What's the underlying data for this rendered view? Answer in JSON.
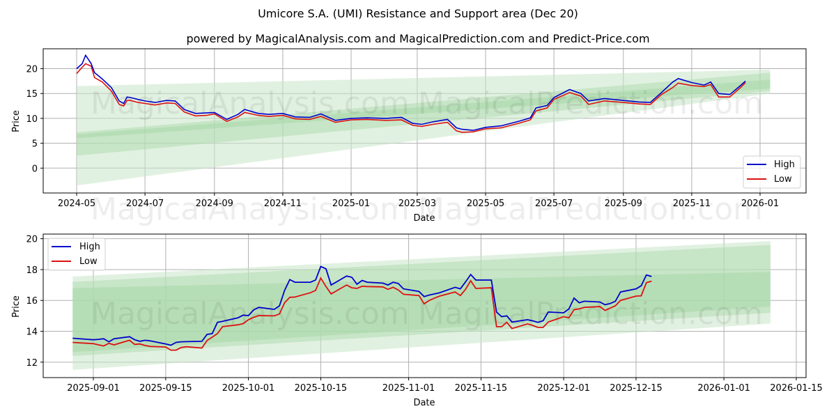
{
  "header": {
    "title": "Umicore S.A. (UMI) Resistance and Support area (Dec 20)",
    "subtitle": "powered by MagicalAnalysis.com and MagicalPrediction.com and Predict-Price.com"
  },
  "colors": {
    "high": "#0000cc",
    "low": "#dd1111",
    "band_light": "#c8e6c8",
    "band_mid": "#a8d8a8",
    "grid": "#b0b0b0"
  },
  "watermarks": {
    "a": "MagicalAnalysis.com",
    "b": "MagicalPrediction.com"
  },
  "chart_data": [
    {
      "type": "line",
      "title": "Full history",
      "xlabel": "Date",
      "ylabel": "Price",
      "ylim": [
        -5,
        24
      ],
      "grid": true,
      "legend_position": "lower right",
      "x_ticks": [
        "2024-05",
        "2024-07",
        "2024-09",
        "2024-11",
        "2025-01",
        "2025-03",
        "2025-05",
        "2025-07",
        "2025-09",
        "2025-11",
        "2026-01"
      ],
      "y_ticks": [
        0,
        5,
        10,
        15,
        20
      ],
      "legend": [
        "High",
        "Low"
      ],
      "x": [
        "2024-05-01",
        "2024-05-06",
        "2024-05-09",
        "2024-05-14",
        "2024-05-17",
        "2024-05-24",
        "2024-06-01",
        "2024-06-08",
        "2024-06-12",
        "2024-06-15",
        "2024-06-18",
        "2024-06-25",
        "2024-07-01",
        "2024-07-10",
        "2024-07-20",
        "2024-07-28",
        "2024-08-05",
        "2024-08-15",
        "2024-08-25",
        "2024-09-01",
        "2024-09-12",
        "2024-09-22",
        "2024-09-28",
        "2024-10-10",
        "2024-10-20",
        "2024-11-01",
        "2024-11-12",
        "2024-11-25",
        "2024-12-05",
        "2024-12-18",
        "2025-01-01",
        "2025-01-15",
        "2025-02-01",
        "2025-02-15",
        "2025-02-25",
        "2025-03-05",
        "2025-03-15",
        "2025-03-28",
        "2025-04-05",
        "2025-04-10",
        "2025-04-20",
        "2025-05-01",
        "2025-05-15",
        "2025-06-01",
        "2025-06-10",
        "2025-06-15",
        "2025-06-25",
        "2025-07-01",
        "2025-07-15",
        "2025-07-25",
        "2025-08-01",
        "2025-08-15",
        "2025-09-01",
        "2025-09-15",
        "2025-09-25",
        "2025-10-05",
        "2025-10-15",
        "2025-10-20",
        "2025-11-01",
        "2025-11-12",
        "2025-11-18",
        "2025-11-25",
        "2025-12-05",
        "2025-12-15",
        "2025-12-19"
      ],
      "series": [
        {
          "name": "High",
          "values": [
            20.0,
            21.0,
            22.7,
            21.0,
            19.2,
            17.9,
            16.2,
            13.5,
            13.0,
            14.3,
            14.2,
            13.8,
            13.5,
            13.2,
            13.6,
            13.5,
            11.8,
            11.0,
            11.1,
            11.2,
            9.8,
            10.8,
            11.8,
            11.0,
            10.8,
            11.0,
            10.3,
            10.2,
            10.9,
            9.6,
            10.0,
            10.1,
            10.0,
            10.2,
            9.0,
            8.8,
            9.3,
            9.8,
            8.1,
            7.8,
            7.6,
            8.2,
            8.5,
            9.5,
            10.1,
            12.1,
            12.6,
            14.2,
            15.8,
            15.0,
            13.5,
            14.0,
            13.6,
            13.3,
            13.2,
            15.2,
            17.3,
            18.0,
            17.2,
            16.7,
            17.3,
            15.0,
            14.8,
            16.7,
            17.5
          ]
        },
        {
          "name": "Low",
          "values": [
            19.0,
            20.3,
            21.0,
            20.5,
            18.2,
            17.3,
            15.5,
            12.8,
            12.5,
            13.6,
            13.6,
            13.2,
            13.0,
            12.7,
            13.1,
            13.0,
            11.3,
            10.5,
            10.6,
            10.9,
            9.4,
            10.3,
            11.2,
            10.6,
            10.4,
            10.6,
            9.9,
            9.8,
            10.4,
            9.2,
            9.7,
            9.8,
            9.6,
            9.7,
            8.6,
            8.4,
            8.8,
            9.2,
            7.5,
            7.2,
            7.3,
            7.9,
            8.1,
            9.1,
            9.7,
            11.5,
            12.1,
            13.8,
            15.2,
            14.5,
            12.8,
            13.5,
            13.2,
            12.9,
            12.8,
            14.8,
            16.2,
            17.1,
            16.6,
            16.4,
            16.8,
            14.3,
            14.3,
            16.3,
            17.2
          ]
        }
      ],
      "bands": [
        {
          "name": "outer",
          "start": {
            "x": "2024-05-01",
            "lower": -3.5,
            "upper": 16.5
          },
          "end": {
            "x": "2026-01-10",
            "lower": 15.0,
            "upper": 19.8
          }
        },
        {
          "name": "mid",
          "start": {
            "x": "2024-05-01",
            "lower": 2.5,
            "upper": 7.2
          },
          "end": {
            "x": "2026-01-10",
            "lower": 15.5,
            "upper": 19.2
          }
        },
        {
          "name": "inner",
          "start": {
            "x": "2024-05-01",
            "lower": 6.0,
            "upper": 6.8
          },
          "end": {
            "x": "2026-01-10",
            "lower": 16.0,
            "upper": 17.8
          }
        }
      ]
    },
    {
      "type": "line",
      "title": "Recent detail",
      "xlabel": "Date",
      "ylabel": "Price",
      "ylim": [
        11,
        20.3
      ],
      "grid": true,
      "legend_position": "upper left",
      "x_ticks": [
        "2025-09-01",
        "2025-09-15",
        "2025-10-01",
        "2025-10-15",
        "2025-11-01",
        "2025-11-15",
        "2025-12-01",
        "2025-12-15",
        "2026-01-01",
        "2026-01-15"
      ],
      "y_ticks": [
        12,
        14,
        16,
        18,
        20
      ],
      "legend": [
        "High",
        "Low"
      ],
      "x": [
        "2025-08-28",
        "2025-09-01",
        "2025-09-02",
        "2025-09-03",
        "2025-09-04",
        "2025-09-05",
        "2025-09-08",
        "2025-09-09",
        "2025-09-10",
        "2025-09-11",
        "2025-09-12",
        "2025-09-15",
        "2025-09-16",
        "2025-09-17",
        "2025-09-18",
        "2025-09-19",
        "2025-09-22",
        "2025-09-23",
        "2025-09-24",
        "2025-09-25",
        "2025-09-26",
        "2025-09-29",
        "2025-09-30",
        "2025-10-01",
        "2025-10-02",
        "2025-10-03",
        "2025-10-06",
        "2025-10-07",
        "2025-10-08",
        "2025-10-09",
        "2025-10-10",
        "2025-10-13",
        "2025-10-14",
        "2025-10-15",
        "2025-10-16",
        "2025-10-17",
        "2025-10-20",
        "2025-10-21",
        "2025-10-22",
        "2025-10-23",
        "2025-10-24",
        "2025-10-27",
        "2025-10-28",
        "2025-10-29",
        "2025-10-30",
        "2025-10-31",
        "2025-11-03",
        "2025-11-04",
        "2025-11-05",
        "2025-11-06",
        "2025-11-07",
        "2025-11-10",
        "2025-11-11",
        "2025-11-12",
        "2025-11-13",
        "2025-11-14",
        "2025-11-17",
        "2025-11-18",
        "2025-11-19",
        "2025-11-20",
        "2025-11-21",
        "2025-11-24",
        "2025-11-25",
        "2025-11-26",
        "2025-11-27",
        "2025-11-28",
        "2025-12-01",
        "2025-12-02",
        "2025-12-03",
        "2025-12-04",
        "2025-12-05",
        "2025-12-08",
        "2025-12-09",
        "2025-12-10",
        "2025-12-11",
        "2025-12-12",
        "2025-12-15",
        "2025-12-16",
        "2025-12-17",
        "2025-12-18"
      ],
      "series": [
        {
          "name": "High",
          "values": [
            13.55,
            13.45,
            13.48,
            13.52,
            13.32,
            13.52,
            13.65,
            13.45,
            13.35,
            13.42,
            13.38,
            13.18,
            13.1,
            13.28,
            13.32,
            13.33,
            13.35,
            13.8,
            13.85,
            14.58,
            14.65,
            14.88,
            15.05,
            15.02,
            15.38,
            15.55,
            15.42,
            15.65,
            16.65,
            17.35,
            17.18,
            17.18,
            17.32,
            18.2,
            18.05,
            17.0,
            17.58,
            17.5,
            17.05,
            17.3,
            17.18,
            17.12,
            17.0,
            17.18,
            17.1,
            16.75,
            16.58,
            16.25,
            16.35,
            16.42,
            16.5,
            16.85,
            16.75,
            17.2,
            17.68,
            17.32,
            17.32,
            15.25,
            14.95,
            15.0,
            14.6,
            14.75,
            14.68,
            14.58,
            14.68,
            15.25,
            15.2,
            15.45,
            16.15,
            15.85,
            15.95,
            15.9,
            15.72,
            15.8,
            15.95,
            16.55,
            16.75,
            16.95,
            17.65,
            17.55
          ]
        },
        {
          "name": "Low",
          "values": [
            13.28,
            13.2,
            13.12,
            13.05,
            13.22,
            13.12,
            13.42,
            13.15,
            13.18,
            13.08,
            13.02,
            12.98,
            12.78,
            12.78,
            12.95,
            13.0,
            12.92,
            13.4,
            13.62,
            13.85,
            14.3,
            14.42,
            14.5,
            14.75,
            14.9,
            15.02,
            15.0,
            15.12,
            15.85,
            16.2,
            16.22,
            16.5,
            16.65,
            17.45,
            16.9,
            16.42,
            17.0,
            16.82,
            16.78,
            16.92,
            16.9,
            16.88,
            16.72,
            16.85,
            16.68,
            16.4,
            16.32,
            15.78,
            16.0,
            16.15,
            16.28,
            16.55,
            16.32,
            16.72,
            17.28,
            16.78,
            16.82,
            14.3,
            14.3,
            14.58,
            14.18,
            14.48,
            14.38,
            14.25,
            14.25,
            14.6,
            14.95,
            14.88,
            15.4,
            15.45,
            15.55,
            15.6,
            15.35,
            15.5,
            15.65,
            16.0,
            16.28,
            16.3,
            17.15,
            17.25
          ]
        }
      ],
      "bands": [
        {
          "name": "outer",
          "start": {
            "x": "2025-08-28",
            "lower": 11.5,
            "upper": 17.55
          },
          "end": {
            "x": "2026-01-10",
            "lower": 14.5,
            "upper": 19.85
          }
        },
        {
          "name": "mid",
          "start": {
            "x": "2025-08-28",
            "lower": 12.4,
            "upper": 17.2
          },
          "end": {
            "x": "2026-01-10",
            "lower": 15.2,
            "upper": 19.6
          }
        },
        {
          "name": "inner",
          "start": {
            "x": "2025-08-28",
            "lower": 12.65,
            "upper": 16.8
          },
          "end": {
            "x": "2026-01-10",
            "lower": 15.6,
            "upper": 17.85
          }
        }
      ]
    }
  ]
}
